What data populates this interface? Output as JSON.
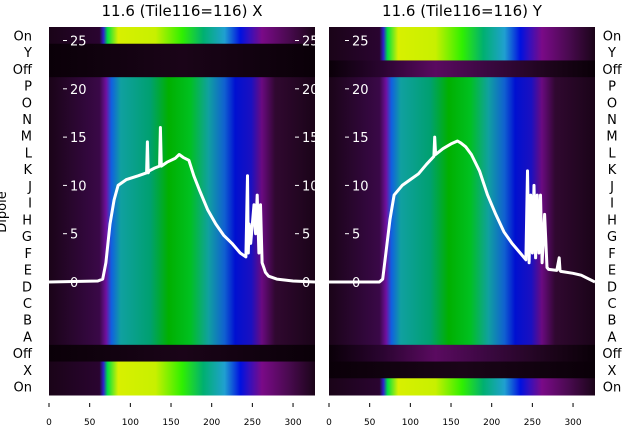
{
  "chart_data": [
    {
      "type": "heatmap",
      "title": "11.6 (Tile116=116) X",
      "ylabel": "Dipole",
      "row_labels": [
        "On",
        "Y",
        "Off",
        "P",
        "O",
        "N",
        "M",
        "L",
        "K",
        "J",
        "I",
        "H",
        "G",
        "F",
        "E",
        "D",
        "C",
        "B",
        "A",
        "Off",
        "X",
        "On"
      ],
      "row_kinds": [
        "on",
        "off",
        "off",
        "dipole",
        "dipole",
        "dipole",
        "dipole",
        "dipole",
        "dipole",
        "dipole",
        "dipole",
        "dipole",
        "dipole",
        "dipole",
        "dipole",
        "dipole",
        "dipole",
        "dipole",
        "dipole",
        "off",
        "on",
        "on"
      ],
      "x_ticks": [
        0,
        50,
        100,
        150,
        200,
        250,
        300
      ],
      "xlim": [
        0,
        327
      ],
      "inner_y_ticks": [
        0,
        5,
        10,
        15,
        20,
        25
      ],
      "inner_ylim": [
        -11.7,
        26.4
      ],
      "line": {
        "x": [
          0,
          60,
          66,
          70,
          75,
          80,
          85,
          95,
          110,
          120,
          121,
          122,
          123,
          130,
          136,
          137,
          138,
          145,
          155,
          160,
          165,
          172,
          178,
          185,
          195,
          205,
          215,
          225,
          235,
          242,
          244,
          245,
          246,
          248,
          252,
          254,
          256,
          258,
          260,
          262,
          264,
          266,
          270,
          280,
          300,
          327
        ],
        "y": [
          0,
          0.1,
          0.3,
          2,
          6,
          8.5,
          10,
          10.6,
          11,
          11.3,
          14.5,
          11.3,
          11.5,
          11.8,
          12,
          16,
          12,
          12.4,
          12.8,
          13.2,
          12.9,
          12.6,
          11,
          9.5,
          7.5,
          6,
          4.8,
          4,
          3,
          2.6,
          11,
          3,
          6,
          4,
          8,
          5,
          9,
          3,
          8,
          2,
          1.5,
          1,
          0.6,
          0.3,
          0.1,
          0
        ]
      }
    },
    {
      "type": "heatmap",
      "title": "11.6 (Tile116=116) Y",
      "row_labels": [
        "On",
        "Y",
        "Off",
        "P",
        "O",
        "N",
        "M",
        "L",
        "K",
        "J",
        "I",
        "H",
        "G",
        "F",
        "E",
        "D",
        "C",
        "B",
        "A",
        "Off",
        "X",
        "On"
      ],
      "row_kinds": [
        "on",
        "on",
        "off2",
        "dipole",
        "dipole",
        "dipole",
        "dipole",
        "dipole",
        "dipole",
        "dipole",
        "dipole",
        "dipole",
        "dipole",
        "dipole",
        "dipole",
        "dipole",
        "dipole",
        "dipole",
        "dipole",
        "off2",
        "off",
        "on"
      ],
      "x_ticks": [
        0,
        50,
        100,
        150,
        200,
        250,
        300
      ],
      "xlim": [
        0,
        327
      ],
      "inner_y_ticks": [
        0,
        5,
        10,
        15,
        20,
        25
      ],
      "inner_ylim": [
        -11.7,
        26.4
      ],
      "line": {
        "x": [
          0,
          62,
          66,
          70,
          75,
          80,
          90,
          100,
          110,
          120,
          129,
          130,
          131,
          140,
          150,
          158,
          162,
          168,
          175,
          185,
          195,
          205,
          215,
          225,
          235,
          242,
          244,
          246,
          248,
          250,
          252,
          254,
          256,
          258,
          260,
          262,
          265,
          268,
          270,
          280,
          283,
          284,
          285,
          300,
          310,
          327
        ],
        "y": [
          0,
          0,
          0.3,
          3,
          6.5,
          9,
          10,
          10.6,
          11.2,
          12.2,
          13,
          15,
          13.2,
          13.8,
          14.3,
          14.6,
          14.4,
          14,
          13.2,
          11.5,
          9,
          7,
          5.2,
          4,
          3,
          2.3,
          11.5,
          2,
          9,
          3,
          10,
          2.5,
          9,
          3,
          9,
          2,
          7,
          1.5,
          1.3,
          1.2,
          2.5,
          1.2,
          1.1,
          0.9,
          0.7,
          0
        ]
      }
    }
  ],
  "colors": {
    "line": "#ffffff"
  }
}
